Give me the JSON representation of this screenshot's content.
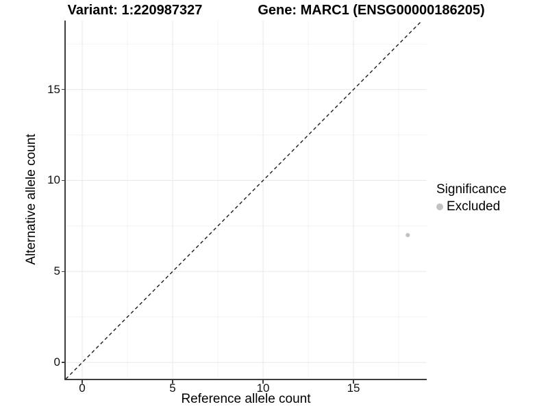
{
  "titles": {
    "variant": "Variant: 1:220987327",
    "gene": "Gene: MARC1 (ENSG00000186205)"
  },
  "chart_data": {
    "type": "scatter",
    "title": "Variant: 1:220987327 / Gene: MARC1 (ENSG00000186205)",
    "xlabel": "Reference allele count",
    "ylabel": "Alternative allele count",
    "xlim": [
      -0.91,
      19.05
    ],
    "ylim": [
      -0.9,
      18.79
    ],
    "x_ticks": [
      0,
      5,
      10,
      15
    ],
    "y_ticks": [
      0,
      5,
      10,
      15
    ],
    "x_minor_ticks": [
      2.5,
      7.5,
      12.5,
      17.5
    ],
    "y_minor_ticks": [
      2.5,
      7.5,
      12.5,
      17.5
    ],
    "grid": true,
    "identity_line": {
      "equation": "y = x",
      "style": "dashed",
      "color": "#1a1a1a"
    },
    "series": [
      {
        "name": "Excluded",
        "color": "#c2c2c2",
        "points": [
          {
            "x": 18,
            "y": 7
          }
        ]
      }
    ],
    "legend": {
      "position": "right",
      "title": "Significance",
      "items": [
        {
          "label": "Excluded",
          "color": "#c2c2c2"
        }
      ]
    }
  },
  "colors": {
    "grid_major": "#e8e8e8",
    "grid_minor": "#f3f3f3",
    "axis_line": "#3d3d3d",
    "background": "#ffffff"
  }
}
